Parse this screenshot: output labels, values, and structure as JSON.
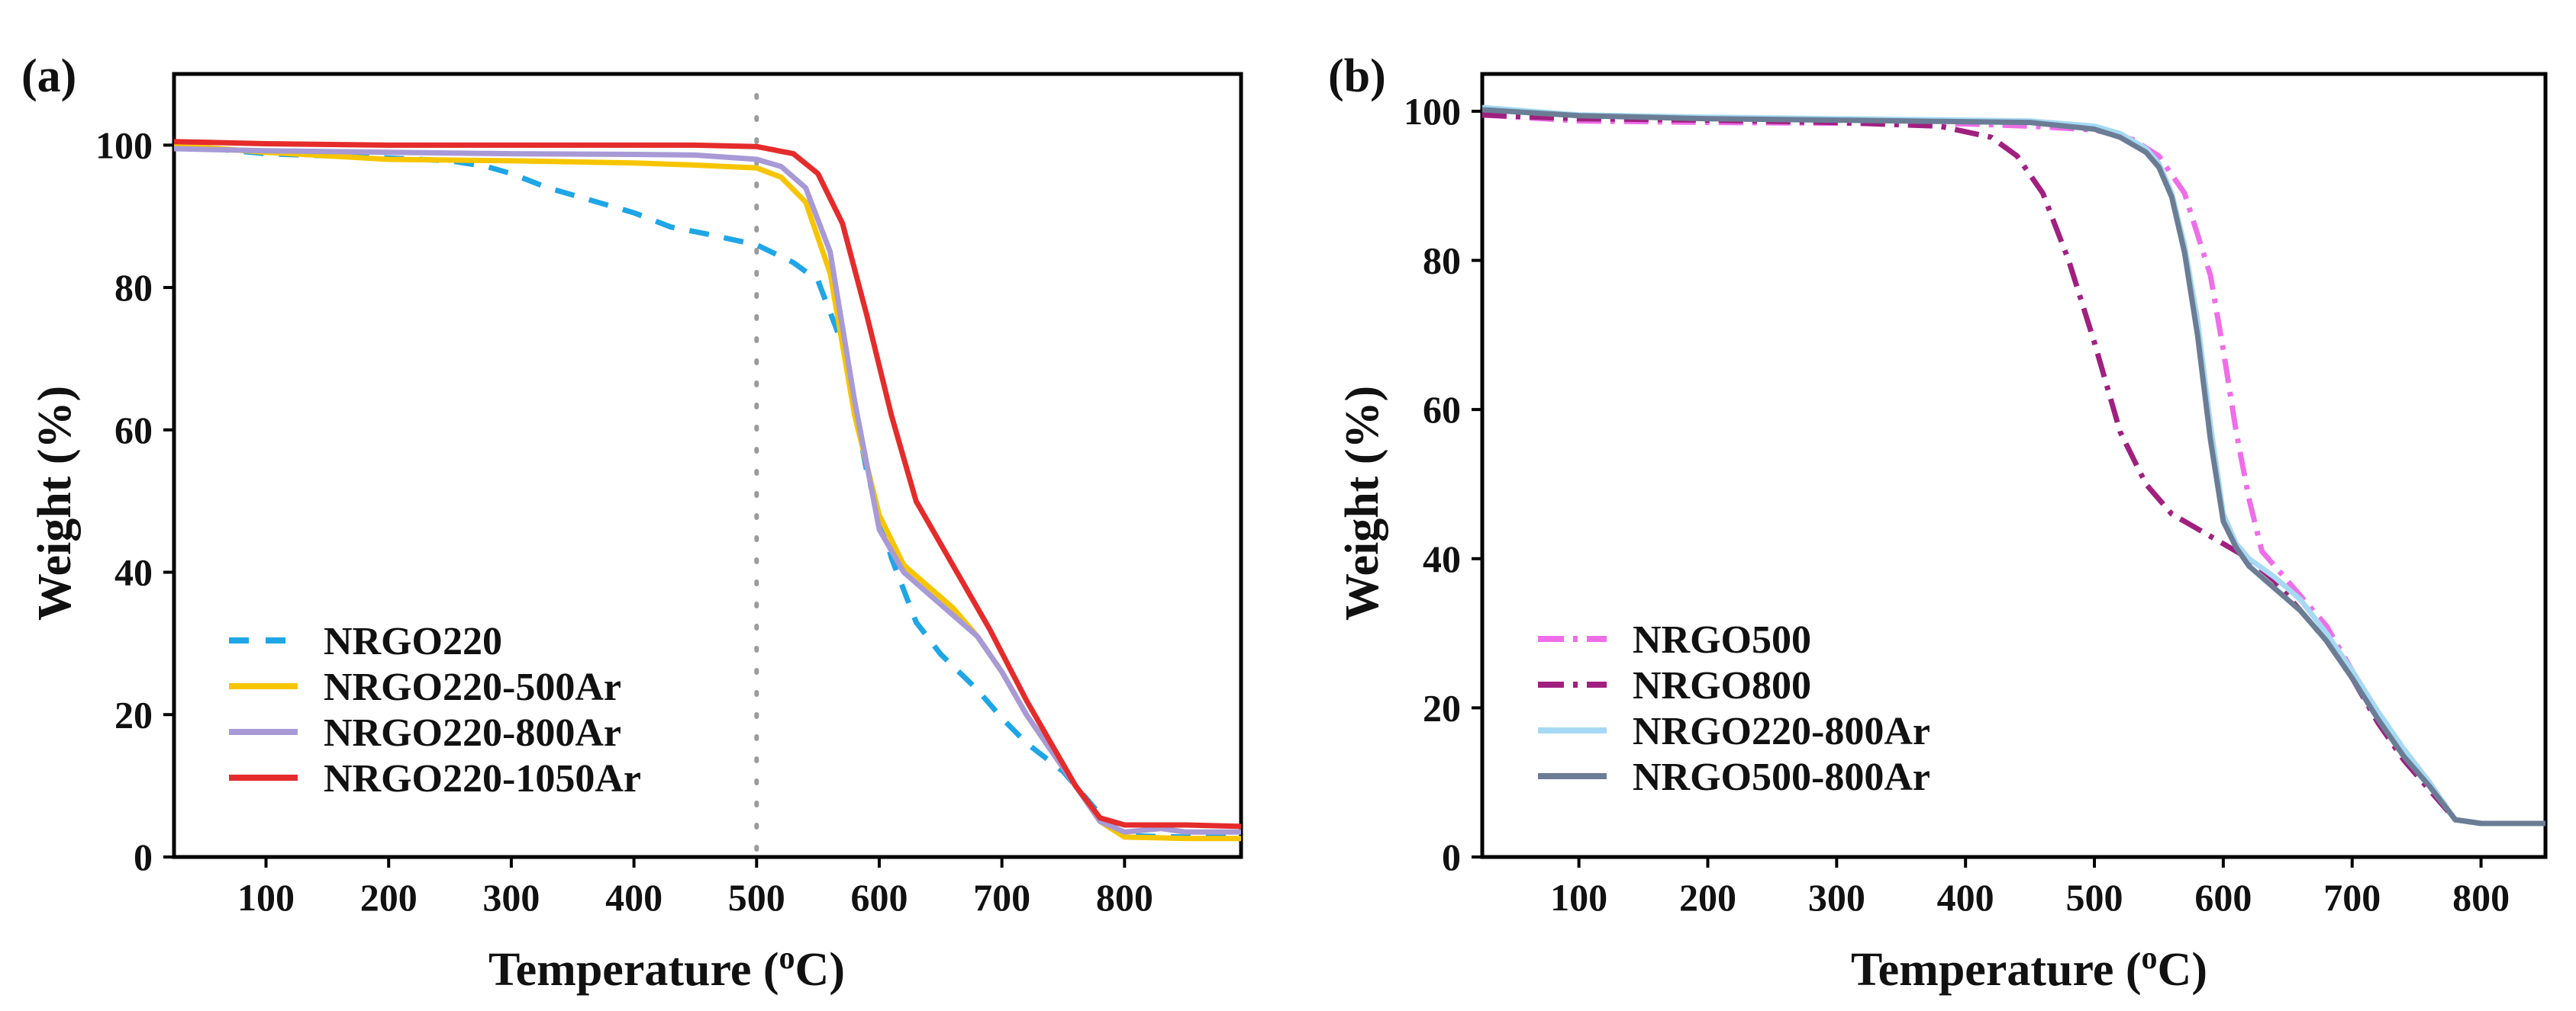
{
  "figure": {
    "panel_labels": [
      "(a)",
      "(b)"
    ]
  },
  "chart_data": [
    {
      "panel": "(a)",
      "type": "line",
      "title": "",
      "xlabel": "Temperature (°C)",
      "xlabel_main": "Temperature (",
      "xlabel_degree": "o",
      "xlabel_unit": "C)",
      "ylabel": "Weight (%)",
      "xlim": [
        25,
        895
      ],
      "ylim": [
        0,
        110
      ],
      "xticks": [
        100,
        200,
        300,
        400,
        500,
        600,
        700,
        800
      ],
      "yticks": [
        0,
        20,
        40,
        60,
        80,
        100
      ],
      "legend_position": "bottom-left",
      "annotation": {
        "type": "vertical-dotted-line",
        "x": 500,
        "color": "#9b9b9b"
      },
      "series": [
        {
          "name": "NRGO220",
          "color": "#1ea6e6",
          "dash": "dashed",
          "x": [
            25,
            100,
            150,
            200,
            250,
            280,
            300,
            330,
            350,
            380,
            400,
            430,
            460,
            500,
            530,
            550,
            570,
            590,
            610,
            630,
            650,
            680,
            700,
            720,
            750,
            780,
            800,
            850,
            895
          ],
          "y": [
            100,
            98.8,
            98.5,
            98.2,
            97.8,
            97,
            96,
            94,
            93,
            91.5,
            90.5,
            88.5,
            87.5,
            86,
            83.5,
            81,
            72,
            54,
            42,
            33,
            28.5,
            23.5,
            19.5,
            16,
            12,
            6,
            3,
            2.8,
            2.8
          ]
        },
        {
          "name": "NRGO220-500Ar",
          "color": "#f7c500",
          "dash": "solid",
          "x": [
            25,
            100,
            150,
            200,
            300,
            400,
            450,
            500,
            520,
            540,
            560,
            580,
            600,
            620,
            640,
            660,
            680,
            700,
            720,
            740,
            760,
            780,
            800,
            850,
            895
          ],
          "y": [
            100,
            99,
            98.5,
            98,
            97.8,
            97.5,
            97.2,
            96.8,
            95.5,
            92,
            82,
            62,
            48,
            41,
            38,
            35,
            31,
            26,
            20,
            15,
            10,
            5,
            2.8,
            2.6,
            2.6
          ]
        },
        {
          "name": "NRGO220-800Ar",
          "color": "#a79ad6",
          "dash": "solid",
          "x": [
            25,
            100,
            200,
            300,
            400,
            450,
            500,
            520,
            540,
            560,
            580,
            600,
            620,
            640,
            660,
            680,
            700,
            720,
            740,
            760,
            780,
            800,
            830,
            850,
            895
          ],
          "y": [
            99.5,
            99.2,
            99,
            98.8,
            98.7,
            98.6,
            98,
            97,
            94,
            85,
            64,
            46,
            40,
            37,
            34,
            31,
            26,
            20,
            15,
            10,
            5,
            3.5,
            4,
            3.5,
            3.5
          ]
        },
        {
          "name": "NRGO220-1050Ar",
          "color": "#e52b2b",
          "dash": "solid",
          "x": [
            25,
            100,
            200,
            300,
            400,
            450,
            500,
            530,
            550,
            570,
            590,
            610,
            630,
            660,
            690,
            720,
            740,
            760,
            780,
            800,
            850,
            895
          ],
          "y": [
            100.5,
            100.2,
            100,
            100,
            100,
            100,
            99.8,
            98.8,
            96,
            89,
            76,
            62,
            50,
            41,
            32,
            22,
            16,
            10,
            5.5,
            4.5,
            4.5,
            4.3
          ]
        }
      ]
    },
    {
      "panel": "(b)",
      "type": "line",
      "title": "",
      "xlabel": "Temperature (°C)",
      "xlabel_main": "Temperature (",
      "xlabel_degree": "o",
      "xlabel_unit": "C)",
      "ylabel": "Weight (%)",
      "xlim": [
        25,
        850
      ],
      "ylim": [
        0,
        105
      ],
      "xticks": [
        100,
        200,
        300,
        400,
        500,
        600,
        700,
        800
      ],
      "yticks": [
        0,
        20,
        40,
        60,
        80,
        100
      ],
      "legend_position": "bottom-left",
      "series": [
        {
          "name": "NRGO500",
          "color": "#ee6ee8",
          "dash": "dash-dot",
          "x": [
            25,
            100,
            200,
            300,
            400,
            450,
            500,
            530,
            550,
            570,
            590,
            600,
            610,
            620,
            630,
            650,
            680,
            700,
            720,
            740,
            760,
            780,
            800,
            850
          ],
          "y": [
            99.5,
            98.7,
            98.5,
            98.4,
            98.3,
            98,
            97.5,
            96.2,
            94,
            89,
            78,
            68,
            57,
            48,
            41,
            37,
            31,
            25,
            19,
            14,
            10,
            5,
            4.5,
            4.5
          ]
        },
        {
          "name": "NRGO800",
          "color": "#a02080",
          "dash": "dash-dot",
          "x": [
            25,
            100,
            200,
            300,
            380,
            420,
            440,
            460,
            480,
            500,
            520,
            540,
            560,
            580,
            600,
            620,
            640,
            660,
            680,
            700,
            720,
            740,
            760,
            780,
            800,
            850
          ],
          "y": [
            99.5,
            99,
            98.8,
            98.5,
            98,
            96.5,
            94,
            89,
            80,
            69,
            57,
            50,
            46,
            44,
            42,
            40,
            37,
            33,
            29,
            24,
            18,
            13,
            9,
            5,
            4.5,
            4.5
          ]
        },
        {
          "name": "NRGO220-800Ar",
          "color": "#a6d9f3",
          "dash": "solid",
          "x": [
            25,
            100,
            200,
            300,
            400,
            450,
            500,
            520,
            540,
            550,
            560,
            570,
            580,
            590,
            600,
            610,
            620,
            640,
            660,
            680,
            700,
            720,
            740,
            760,
            780,
            800,
            850
          ],
          "y": [
            100.5,
            99.5,
            99.2,
            99,
            98.8,
            98.7,
            98,
            97,
            95,
            93,
            89,
            82,
            72,
            58,
            46,
            42,
            40,
            37.5,
            34.5,
            30,
            25,
            19.5,
            14.5,
            10,
            5,
            4.5,
            4.5
          ]
        },
        {
          "name": "NRGO500-800Ar",
          "color": "#6b7d95",
          "dash": "solid",
          "x": [
            25,
            100,
            200,
            300,
            400,
            450,
            500,
            520,
            540,
            550,
            560,
            570,
            580,
            590,
            600,
            610,
            620,
            640,
            660,
            680,
            700,
            720,
            740,
            760,
            780,
            800,
            850
          ],
          "y": [
            100.2,
            99.4,
            99,
            98.8,
            98.6,
            98.5,
            97.6,
            96.5,
            94.5,
            92.5,
            88.5,
            81,
            70,
            56,
            45,
            41.5,
            39,
            36,
            33,
            29,
            24,
            18.5,
            13.5,
            9.5,
            5,
            4.5,
            4.5
          ]
        }
      ]
    }
  ]
}
